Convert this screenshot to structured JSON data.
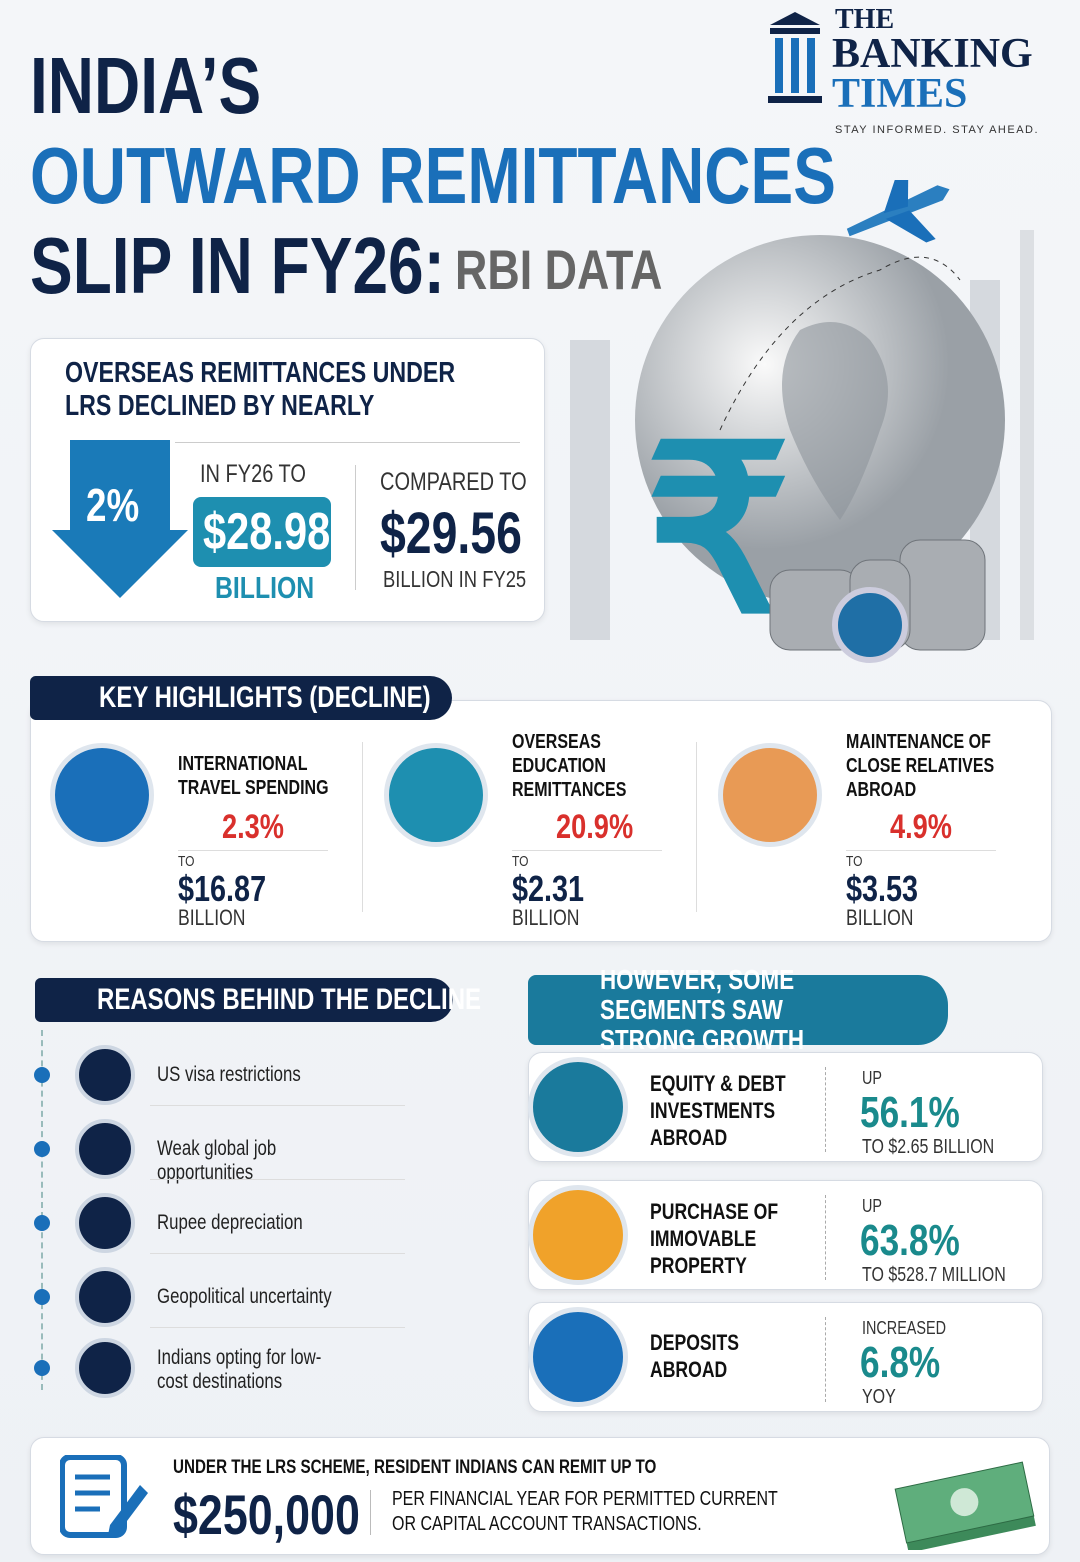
{
  "header": {
    "title_line1": "INDIA’S",
    "title_line2": "OUTWARD REMITTANCES",
    "title_line3": "SLIP IN FY26:",
    "title_suffix": "RBI DATA"
  },
  "logo": {
    "line1": "THE",
    "line2": "BANKING",
    "line3": "TIMES",
    "tagline": "STAY INFORMED. STAY AHEAD."
  },
  "summary": {
    "heading": "OVERSEAS REMITTANCES UNDER LRS DECLINED BY NEARLY",
    "decline": "2%",
    "current_label": "IN FY26 TO",
    "current_value": "$28.98",
    "current_unit": "BILLION",
    "compare_label": "COMPARED TO",
    "compare_value": "$29.56",
    "compare_unit": "BILLION IN FY25"
  },
  "highlights": {
    "title": "KEY HIGHLIGHTS (DECLINE)",
    "items": [
      {
        "label": "INTERNATIONAL TRAVEL SPENDING",
        "change": "2.3%",
        "to": "TO",
        "value": "$16.87",
        "unit": "BILLION"
      },
      {
        "label": "OVERSEAS EDUCATION REMITTANCES",
        "change": "20.9%",
        "to": "TO",
        "value": "$2.31",
        "unit": "BILLION"
      },
      {
        "label": "MAINTENANCE OF CLOSE RELATIVES ABROAD",
        "change": "4.9%",
        "to": "TO",
        "value": "$3.53",
        "unit": "BILLION"
      }
    ]
  },
  "reasons": {
    "title": "REASONS BEHIND THE DECLINE",
    "items": [
      "US visa restrictions",
      "Weak global job opportunities",
      "Rupee depreciation",
      "Geopolitical uncertainty",
      "Indians opting for low-cost destinations"
    ]
  },
  "growth": {
    "title": "HOWEVER, SOME SEGMENTS SAW STRONG GROWTH",
    "items": [
      {
        "label": "EQUITY & DEBT INVESTMENTS ABROAD",
        "prefix": "UP",
        "change": "56.1%",
        "note": "TO $2.65 BILLION"
      },
      {
        "label": "PURCHASE OF IMMOVABLE PROPERTY",
        "prefix": "UP",
        "change": "63.8%",
        "note": "TO $528.7 MILLION"
      },
      {
        "label": "DEPOSITS ABROAD",
        "prefix": "INCREASED",
        "change": "6.8%",
        "note": "YOY"
      }
    ]
  },
  "footer": {
    "line1": "UNDER THE LRS SCHEME, RESIDENT INDIANS CAN REMIT UP TO",
    "amount": "$250,000",
    "note": "PER FINANCIAL YEAR FOR PERMITTED CURRENT OR CAPITAL ACCOUNT TRANSACTIONS."
  }
}
